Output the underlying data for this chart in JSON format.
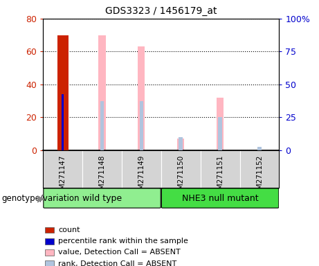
{
  "title": "GDS3323 / 1456179_at",
  "samples": [
    "GSM271147",
    "GSM271148",
    "GSM271149",
    "GSM271150",
    "GSM271151",
    "GSM271152"
  ],
  "group_wild": {
    "name": "wild type",
    "color": "#90EE90",
    "start": 0,
    "end": 3
  },
  "group_nhe": {
    "name": "NHE3 null mutant",
    "color": "#44DD44",
    "start": 3,
    "end": 6
  },
  "count_values": [
    70,
    0,
    0,
    0,
    0,
    0
  ],
  "percentile_rank_values": [
    34,
    0,
    0,
    0,
    0,
    0
  ],
  "value_absent_values": [
    0,
    70,
    63,
    7,
    32,
    0
  ],
  "rank_absent_values": [
    0,
    30,
    30,
    8,
    20,
    2
  ],
  "ylim_left": [
    0,
    80
  ],
  "ylim_right": [
    0,
    100
  ],
  "yticks_left": [
    0,
    20,
    40,
    60,
    80
  ],
  "yticks_right": [
    0,
    25,
    50,
    75,
    100
  ],
  "ytick_labels_left": [
    "0",
    "20",
    "40",
    "60",
    "80"
  ],
  "ytick_labels_right": [
    "0",
    "25",
    "50",
    "75",
    "100%"
  ],
  "color_count": "#CC2200",
  "color_percentile": "#0000CC",
  "color_value_absent": "#FFB6C1",
  "color_rank_absent": "#B0C4DE",
  "label_count": "count",
  "label_percentile": "percentile rank within the sample",
  "label_value_absent": "value, Detection Call = ABSENT",
  "label_rank_absent": "rank, Detection Call = ABSENT",
  "xlabel_group": "genotype/variation"
}
